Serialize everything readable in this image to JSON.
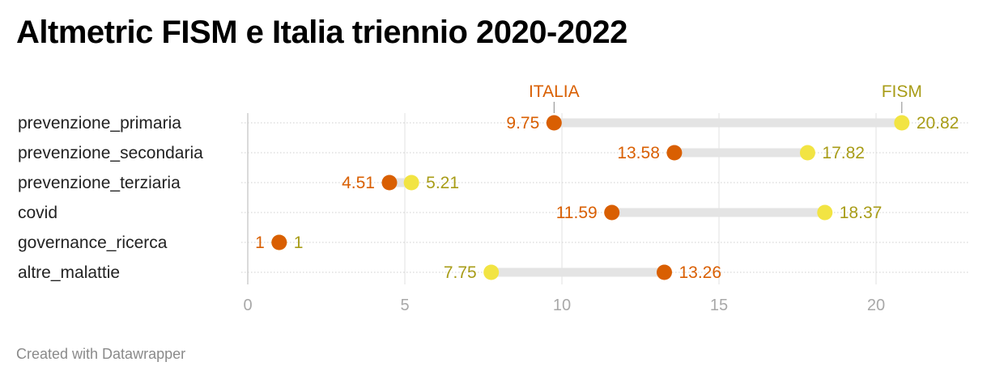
{
  "title": "Altmetric FISM e Italia triennio 2020-2022",
  "footer": "Created with Datawrapper",
  "chart_data": {
    "type": "dot-range",
    "categories": [
      "prevenzione_primaria",
      "prevenzione_secondaria",
      "prevenzione_terziaria",
      "covid",
      "governance_ricerca",
      "altre_malattie"
    ],
    "series": [
      {
        "name": "ITALIA",
        "color": "#d95f02",
        "values": [
          9.75,
          13.58,
          4.51,
          11.59,
          1,
          13.26
        ]
      },
      {
        "name": "FISM",
        "color": "#f2e443",
        "label_color": "#a89c17",
        "values": [
          20.82,
          17.82,
          5.21,
          18.37,
          1,
          7.75
        ]
      }
    ],
    "xlim": [
      0,
      23
    ],
    "xticks": [
      0,
      5,
      10,
      15,
      20
    ],
    "grid": true,
    "colors": {
      "range_bar": "#e4e4e4",
      "grid": "#e1e1e1",
      "tick_label": "#a8a8a8"
    }
  }
}
